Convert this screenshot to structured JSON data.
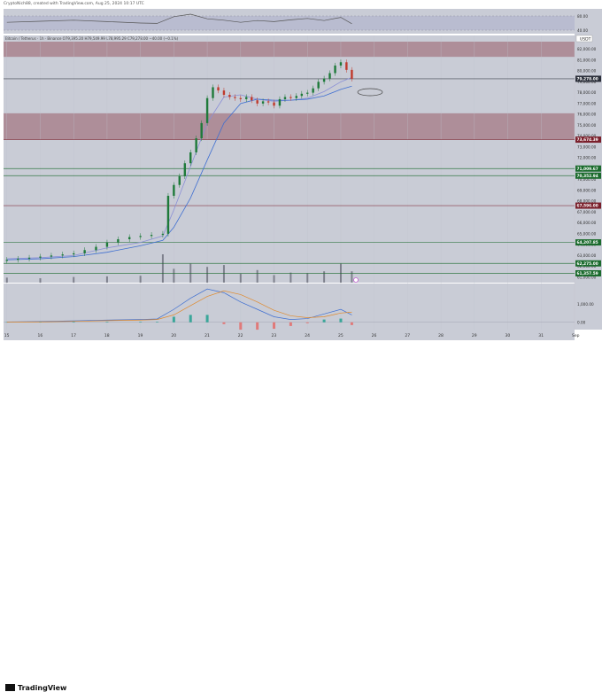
{
  "header_text": "CryptoNich88, created with TradingView.com, Aug 25, 2024 10:17 UTC",
  "legend_text": "Bitcoin / Tetherus · 1h · Binance  O79,395.20  H79,549.99  L78,995.29  C79,278.00  −40.00 (−0.1%)",
  "currency_label": "USDT",
  "logo_text": "TradingView",
  "rsi_labels": [
    "80.00",
    "40.00"
  ],
  "macd_labels": [
    "1,000.00",
    "0.00"
  ],
  "chart_data": {
    "type": "line",
    "title": "",
    "xlabel": "",
    "ylabel": "",
    "ylim": [
      60500,
      82700
    ],
    "x_ticks": [
      "15",
      "16",
      "17",
      "18",
      "19",
      "20",
      "21",
      "22",
      "23",
      "24",
      "25",
      "26",
      "27",
      "28",
      "29",
      "30",
      "31",
      "Sep"
    ],
    "y_ticks": [
      82000,
      81000,
      80000,
      79000,
      78000,
      77000,
      76000,
      75000,
      74000,
      73000,
      72000,
      71000,
      70000,
      69000,
      68000,
      67000,
      66000,
      65000,
      64000,
      63000,
      62000,
      61000
    ],
    "price_labels": [
      {
        "value": 79278,
        "text": "79,278.00",
        "color": "#2a2e39"
      },
      {
        "value": 73674.39,
        "text": "73,674.39",
        "color": "#7a1f2b"
      },
      {
        "value": 71009.67,
        "text": "71,009.67",
        "color": "#1b6b2d"
      },
      {
        "value": 70352.94,
        "text": "70,352.94",
        "color": "#1b6b2d"
      },
      {
        "value": 67596,
        "text": "67,596.00",
        "color": "#7a1f2b"
      },
      {
        "value": 64207.85,
        "text": "64,207.85",
        "color": "#1b6b2d"
      },
      {
        "value": 62275,
        "text": "62,275.00",
        "color": "#1b6b2d"
      },
      {
        "value": 61357.59,
        "text": "61,357.59",
        "color": "#1b6b2d"
      }
    ],
    "zones": [
      {
        "from": 81300,
        "to": 82900,
        "color": "#8b3a45"
      },
      {
        "from": 73674.39,
        "to": 76100,
        "color": "#8b3a45"
      }
    ],
    "series": [
      {
        "kind": "candles",
        "x": [
          15,
          15.33,
          15.67,
          16,
          16.33,
          16.67,
          17,
          17.33,
          17.67,
          18,
          18.33,
          18.67,
          19,
          19.33,
          19.67,
          19.83,
          20,
          20.17,
          20.33,
          20.5,
          20.67,
          20.83,
          21,
          21.17,
          21.33,
          21.5,
          21.67,
          21.83,
          22,
          22.17,
          22.33,
          22.5,
          22.67,
          22.83,
          23,
          23.17,
          23.33,
          23.5,
          23.67,
          23.83,
          24,
          24.17,
          24.33,
          24.5,
          24.67,
          24.83,
          25,
          25.17,
          25.33
        ],
        "close": [
          62600,
          62700,
          62800,
          62900,
          63000,
          63100,
          63200,
          63500,
          63800,
          64200,
          64500,
          64700,
          64800,
          64900,
          65000,
          68500,
          69500,
          70300,
          71500,
          72500,
          73800,
          75200,
          77500,
          78500,
          78200,
          77800,
          77600,
          77500,
          77400,
          77600,
          77300,
          77000,
          77200,
          77100,
          76800,
          77400,
          77600,
          77500,
          77700,
          77900,
          78000,
          78400,
          79000,
          79300,
          79800,
          80500,
          80800,
          80100,
          79278
        ]
      },
      {
        "name": "",
        "kind": "ema_fast",
        "color": "#8a8fd6",
        "x": [
          15,
          16,
          17,
          18,
          19,
          19.67,
          20,
          20.5,
          21,
          21.5,
          22,
          22.5,
          23,
          23.5,
          24,
          24.5,
          25,
          25.33
        ],
        "values": [
          62700,
          62800,
          63000,
          63700,
          64200,
          64800,
          67200,
          71200,
          75200,
          77600,
          77800,
          77400,
          77200,
          77300,
          77500,
          78100,
          79000,
          79400
        ]
      },
      {
        "name": "",
        "kind": "ema_slow",
        "color": "#3f6fd1",
        "x": [
          15,
          16,
          17,
          18,
          19,
          19.67,
          20,
          20.5,
          21,
          21.5,
          22,
          22.5,
          23,
          23.5,
          24,
          24.5,
          25,
          25.33
        ],
        "values": [
          62600,
          62700,
          62900,
          63300,
          63900,
          64400,
          65600,
          68300,
          71800,
          75200,
          77000,
          77400,
          77300,
          77300,
          77400,
          77700,
          78300,
          78600
        ]
      }
    ],
    "rsi": {
      "ylim": [
        20,
        90
      ],
      "lines": [
        70,
        30
      ],
      "x": [
        15,
        16,
        17,
        18,
        19,
        19.5,
        20,
        20.5,
        21,
        21.5,
        22,
        22.5,
        23,
        23.5,
        24,
        24.5,
        25,
        25.33
      ],
      "values": [
        52,
        55,
        58,
        54,
        50,
        49,
        68,
        75,
        62,
        58,
        52,
        57,
        54,
        59,
        63,
        57,
        66,
        48
      ]
    },
    "volume": {
      "x": [
        15,
        16,
        17,
        18,
        19,
        19.67,
        20,
        20.5,
        21,
        21.5,
        22,
        22.5,
        23,
        23.5,
        24,
        24.5,
        25,
        25.33
      ],
      "values": [
        8,
        7,
        9,
        10,
        11,
        45,
        22,
        30,
        25,
        28,
        14,
        20,
        12,
        16,
        15,
        18,
        30,
        18
      ]
    },
    "macd": {
      "x": [
        15,
        16,
        17,
        18,
        19,
        19.5,
        20,
        20.5,
        21,
        21.5,
        22,
        22.5,
        23,
        23.5,
        24,
        24.5,
        25,
        25.33
      ],
      "macd": [
        20,
        40,
        80,
        120,
        150,
        180,
        700,
        1300,
        1800,
        1600,
        1100,
        700,
        300,
        150,
        200,
        450,
        700,
        400
      ],
      "signal": [
        10,
        25,
        50,
        90,
        120,
        150,
        400,
        900,
        1400,
        1700,
        1500,
        1100,
        650,
        350,
        250,
        300,
        500,
        550
      ]
    }
  }
}
